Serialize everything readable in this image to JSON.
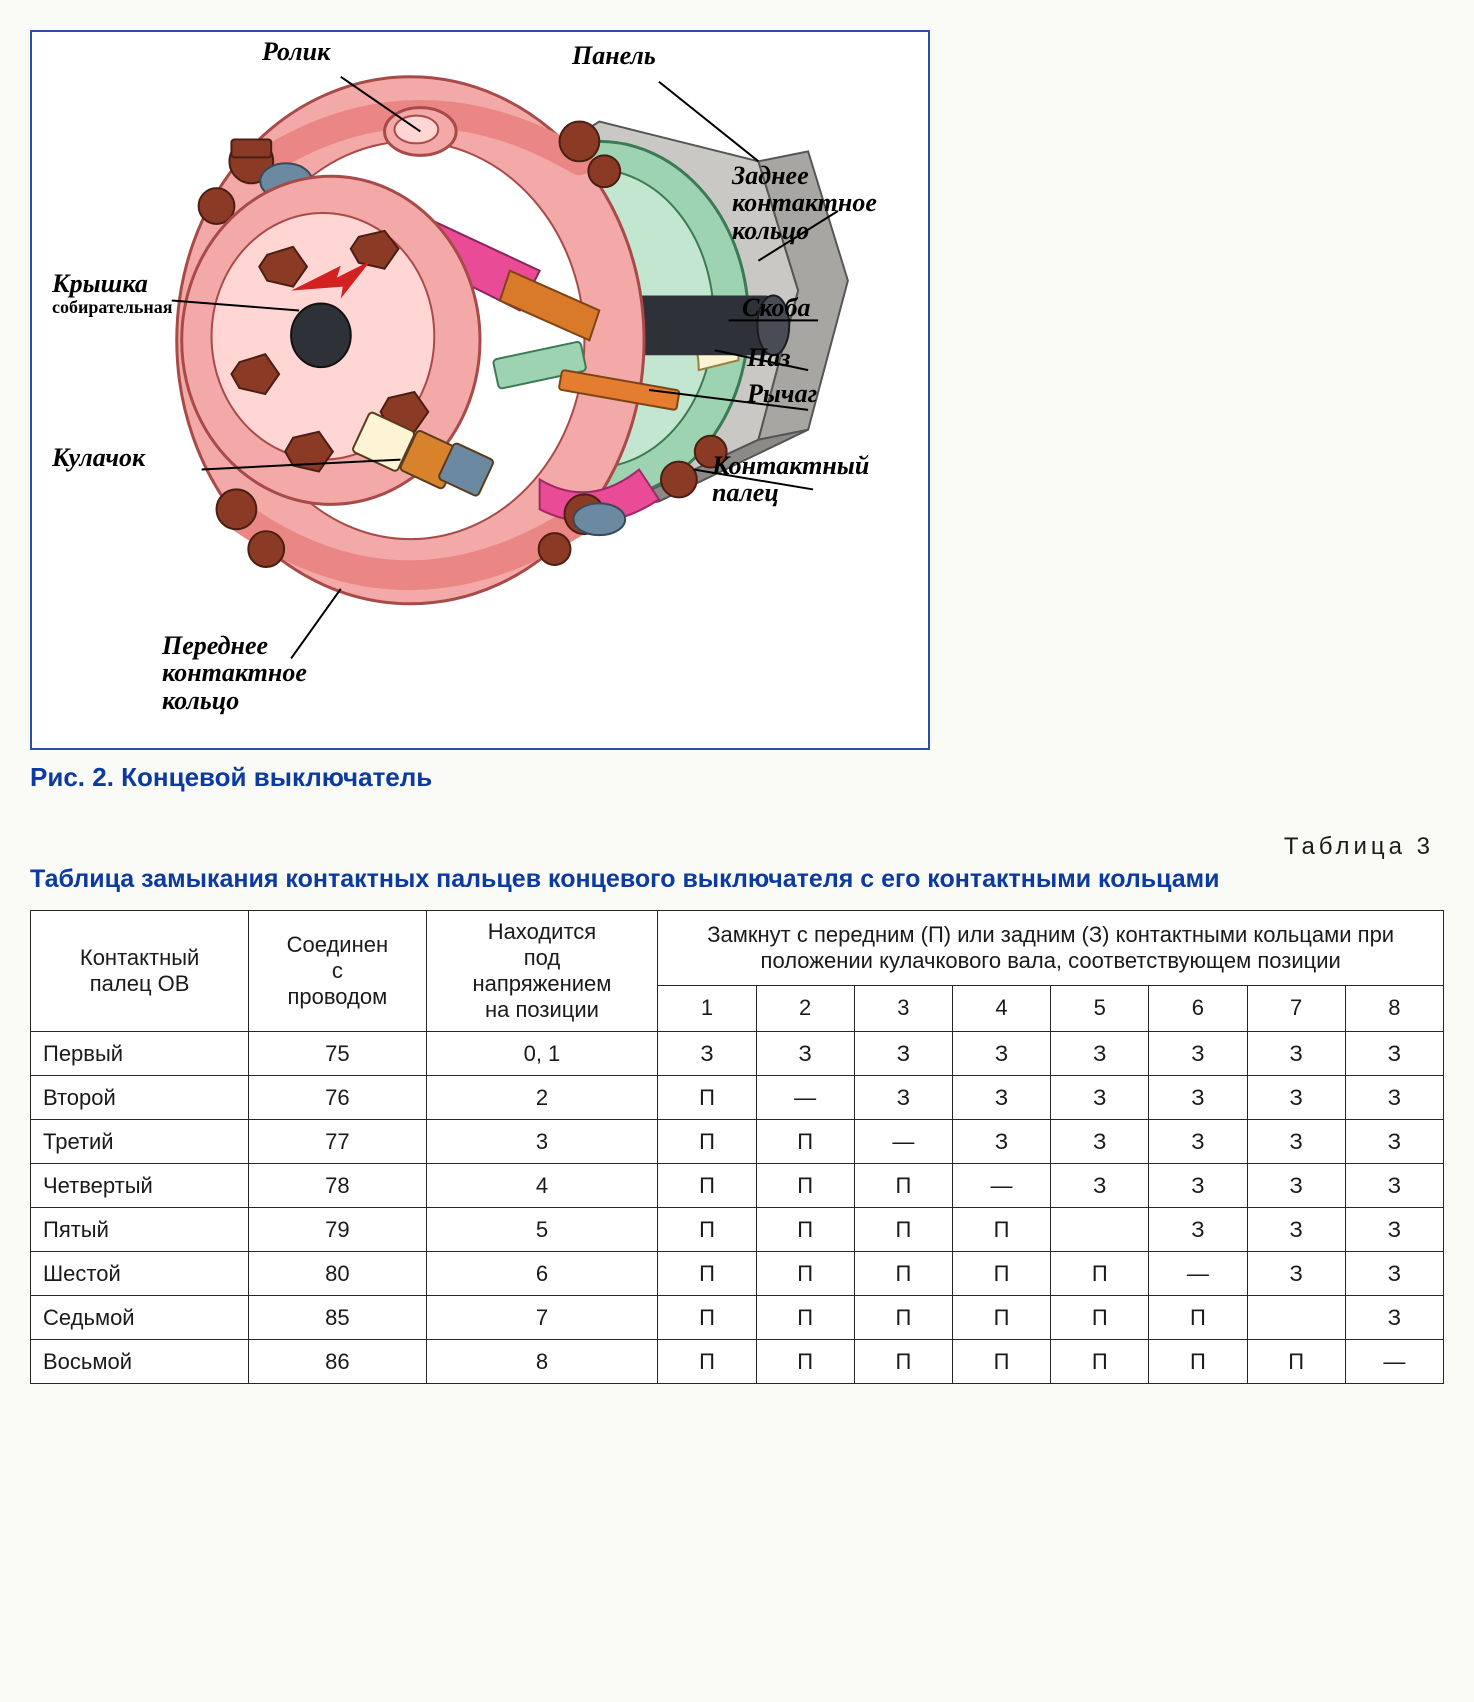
{
  "figure": {
    "caption": "Рис. 2. Концевой выключатель",
    "labels": {
      "rolik": "Ролик",
      "panel": "Панель",
      "zadnee_kontaktnoe_koltso": "Заднее\nконтактное\nкольцо",
      "kryshka": "Крышка",
      "sobiratelnaya": "собирательная",
      "kulachok": "Кулачок",
      "skoba": "Скоба",
      "paz": "Паз",
      "rychag": "Рычаг",
      "kontaktnyy_palets": "Контактный\nпалец",
      "perednee_kontaktnoe_koltso": "Переднее\nконтактное\nкольцо"
    },
    "colors": {
      "border": "#2b4fa8",
      "body_pink": "#f2a9a7",
      "body_pink_dark": "#ea8785",
      "panel_text": "#9a9a9a",
      "ring_green": "#9dd3b0",
      "ring_green_dark": "#72b58b",
      "magenta": "#e94b97",
      "brown": "#8a3a25",
      "orange": "#d97a2b",
      "steel": "#6b89a0",
      "cream": "#fdf4d5",
      "dark": "#2f3138"
    }
  },
  "table": {
    "label_right": "Таблица 3",
    "title": "Таблица замыкания контактных пальцев концевого выключателя с его контактными кольцами",
    "headers": {
      "col1": "Контактный\nпалец ОВ",
      "col2": "Соединен\nс\nпроводом",
      "col3": "Находится\nпод\nнапряжением\nна позиции",
      "col_group": "Замкнут с передним (П) или задним (З) контактными кольцами при положении кулачкового вала, соответствующем позиции",
      "positions": [
        "1",
        "2",
        "3",
        "4",
        "5",
        "6",
        "7",
        "8"
      ]
    },
    "rows": [
      {
        "name": "Первый",
        "wire": "75",
        "pos": "0, 1",
        "cells": [
          "З",
          "З",
          "З",
          "З",
          "З",
          "З",
          "З",
          "З"
        ]
      },
      {
        "name": "Второй",
        "wire": "76",
        "pos": "2",
        "cells": [
          "П",
          "—",
          "З",
          "З",
          "З",
          "З",
          "З",
          "З"
        ]
      },
      {
        "name": "Третий",
        "wire": "77",
        "pos": "3",
        "cells": [
          "П",
          "П",
          "—",
          "З",
          "З",
          "З",
          "З",
          "З"
        ]
      },
      {
        "name": "Четвертый",
        "wire": "78",
        "pos": "4",
        "cells": [
          "П",
          "П",
          "П",
          "—",
          "З",
          "З",
          "З",
          "З"
        ]
      },
      {
        "name": "Пятый",
        "wire": "79",
        "pos": "5",
        "cells": [
          "П",
          "П",
          "П",
          "П",
          "",
          "З",
          "З",
          "З"
        ]
      },
      {
        "name": "Шестой",
        "wire": "80",
        "pos": "6",
        "cells": [
          "П",
          "П",
          "П",
          "П",
          "П",
          "—",
          "З",
          "З"
        ]
      },
      {
        "name": "Седьмой",
        "wire": "85",
        "pos": "7",
        "cells": [
          "П",
          "П",
          "П",
          "П",
          "П",
          "П",
          "",
          "З"
        ]
      },
      {
        "name": "Восьмой",
        "wire": "86",
        "pos": "8",
        "cells": [
          "П",
          "П",
          "П",
          "П",
          "П",
          "П",
          "П",
          "—"
        ]
      }
    ]
  }
}
